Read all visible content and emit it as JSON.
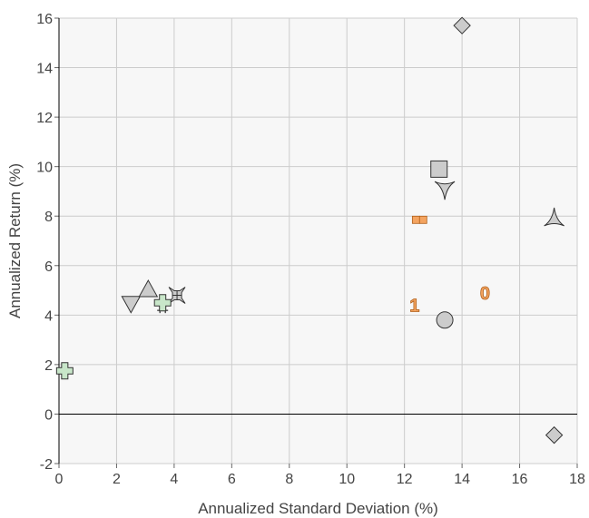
{
  "chart_data": {
    "type": "scatter",
    "title": "",
    "xlabel": "Annualized Standard Deviation (%)",
    "ylabel": "Annualized Return (%)",
    "xlim": [
      0,
      18
    ],
    "ylim": [
      -2,
      16
    ],
    "x_ticks": [
      "0",
      "2",
      "4",
      "6",
      "8",
      "10",
      "12",
      "14",
      "16",
      "18"
    ],
    "y_ticks": [
      "-2",
      "0",
      "2",
      "4",
      "6",
      "8",
      "10",
      "12",
      "14",
      "16"
    ],
    "grid": true,
    "plot_background": "#f7f7f7",
    "grid_color": "#cccccc",
    "points": [
      {
        "x": 14.0,
        "y": 15.7,
        "marker": "diamond",
        "color": "#cccccc"
      },
      {
        "x": 13.2,
        "y": 9.9,
        "marker": "square",
        "color": "#cccccc"
      },
      {
        "x": 13.4,
        "y": 9.1,
        "marker": "tri-down",
        "color": "#cccccc"
      },
      {
        "x": 17.2,
        "y": 7.9,
        "marker": "tri-up",
        "color": "#cccccc"
      },
      {
        "x": 12.4,
        "y": 7.85,
        "marker": "small-square",
        "color": "#f4a460"
      },
      {
        "x": 12.65,
        "y": 7.85,
        "marker": "small-square",
        "color": "#f4a460"
      },
      {
        "x": 14.8,
        "y": 4.9,
        "marker": "label",
        "label": "0",
        "color": "#f4a460"
      },
      {
        "x": 12.35,
        "y": 4.4,
        "marker": "label",
        "label": "1",
        "color": "#f4a460"
      },
      {
        "x": 13.4,
        "y": 3.8,
        "marker": "circle",
        "color": "#cccccc"
      },
      {
        "x": 2.5,
        "y": 4.5,
        "marker": "triangle-down",
        "color": "#cccccc"
      },
      {
        "x": 3.1,
        "y": 5.0,
        "marker": "triangle-up",
        "color": "#cccccc"
      },
      {
        "x": 4.1,
        "y": 4.8,
        "marker": "cross",
        "color": "#cccccc"
      },
      {
        "x": 3.6,
        "y": 4.3,
        "marker": "hash",
        "color": "#cccccc"
      },
      {
        "x": 3.6,
        "y": 4.5,
        "marker": "plus",
        "color": "#c8e6c9"
      },
      {
        "x": 0.2,
        "y": 1.75,
        "marker": "plus",
        "color": "#c8e6c9"
      },
      {
        "x": 17.2,
        "y": -0.85,
        "marker": "diamond",
        "color": "#cccccc"
      }
    ]
  }
}
